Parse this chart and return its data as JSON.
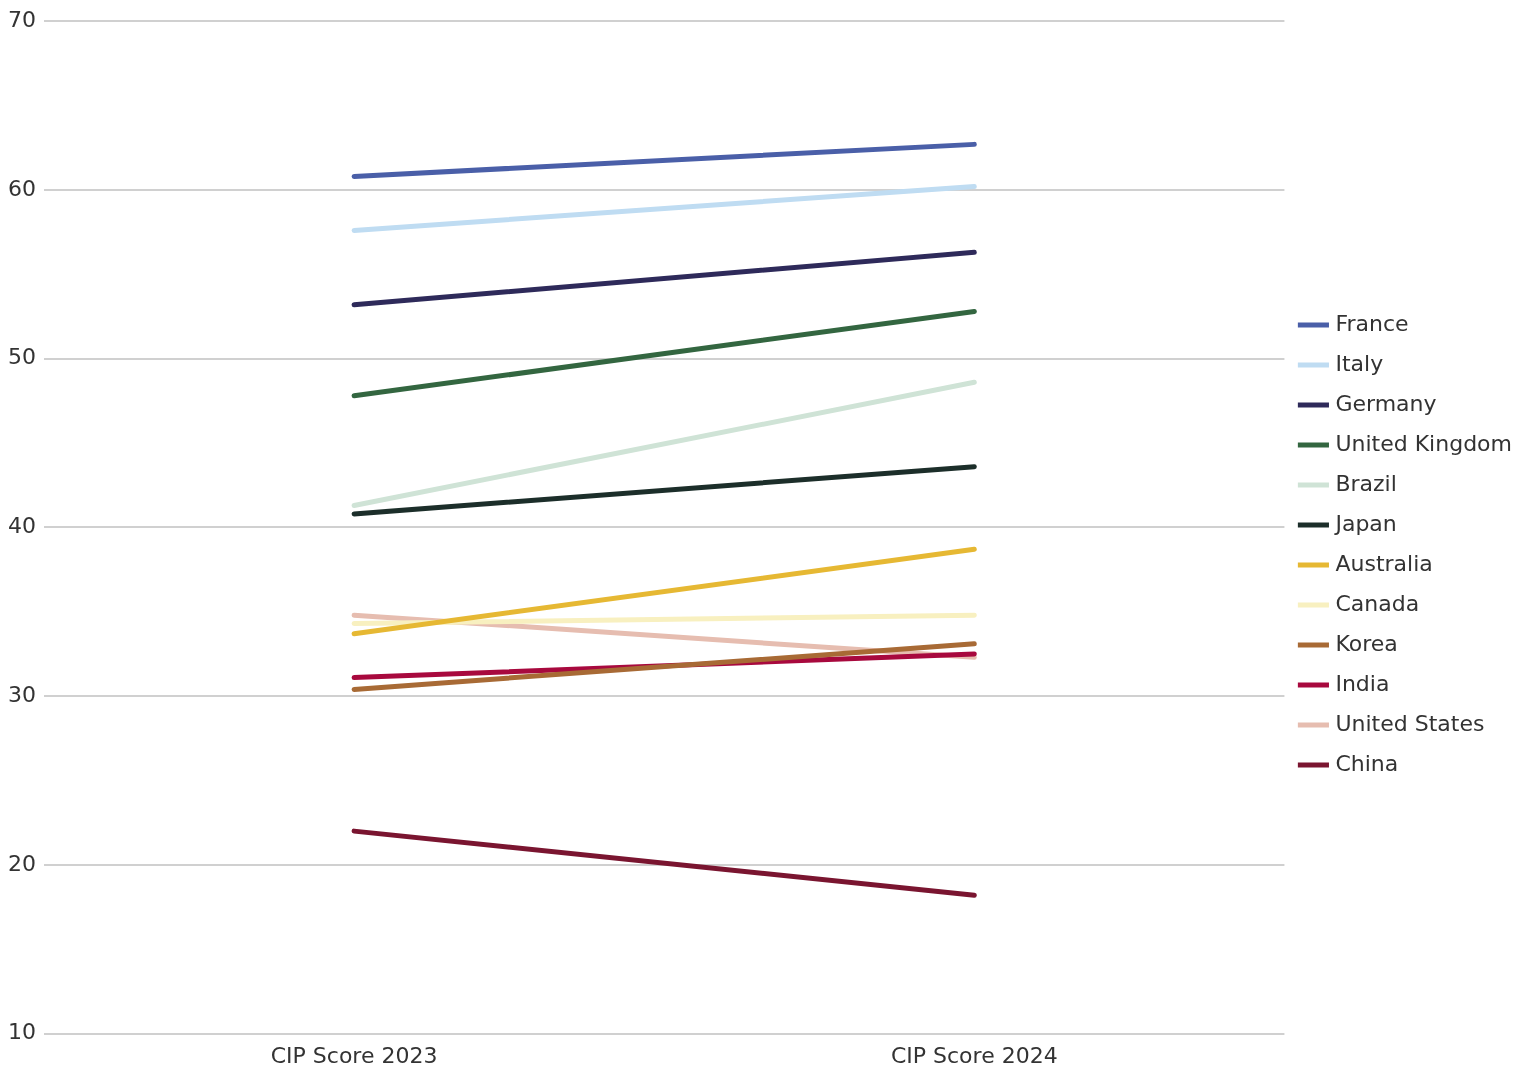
{
  "chart_data": {
    "type": "line",
    "categories": [
      "CIP Score 2023",
      "CIP Score 2024"
    ],
    "series": [
      {
        "name": "France",
        "color": "#4a5fa8",
        "values": [
          60.8,
          62.7
        ]
      },
      {
        "name": "Italy",
        "color": "#bfdcf2",
        "values": [
          57.6,
          60.2
        ]
      },
      {
        "name": "Germany",
        "color": "#2e2a5a",
        "values": [
          53.2,
          56.3
        ]
      },
      {
        "name": "United Kingdom",
        "color": "#336640",
        "values": [
          47.8,
          52.8
        ]
      },
      {
        "name": "Brazil",
        "color": "#cfe3d6",
        "values": [
          41.3,
          48.6
        ]
      },
      {
        "name": "Japan",
        "color": "#1c2e2a",
        "values": [
          40.8,
          43.6
        ]
      },
      {
        "name": "Australia",
        "color": "#e6b833",
        "values": [
          33.7,
          38.7
        ]
      },
      {
        "name": "Canada",
        "color": "#f8f0c0",
        "values": [
          34.3,
          34.8
        ]
      },
      {
        "name": "Korea",
        "color": "#a86a35",
        "values": [
          30.4,
          33.1
        ]
      },
      {
        "name": "India",
        "color": "#a8093e",
        "values": [
          31.1,
          32.5
        ]
      },
      {
        "name": "United States",
        "color": "#e6bdb0",
        "values": [
          34.8,
          32.3
        ]
      },
      {
        "name": "China",
        "color": "#7a1530",
        "values": [
          22.0,
          18.2
        ]
      }
    ],
    "ylim": [
      10,
      70
    ],
    "yticks": [
      10,
      20,
      30,
      40,
      50,
      60,
      70
    ],
    "grid": "y",
    "legend": "right",
    "marker": "none",
    "line_style": "solid"
  }
}
